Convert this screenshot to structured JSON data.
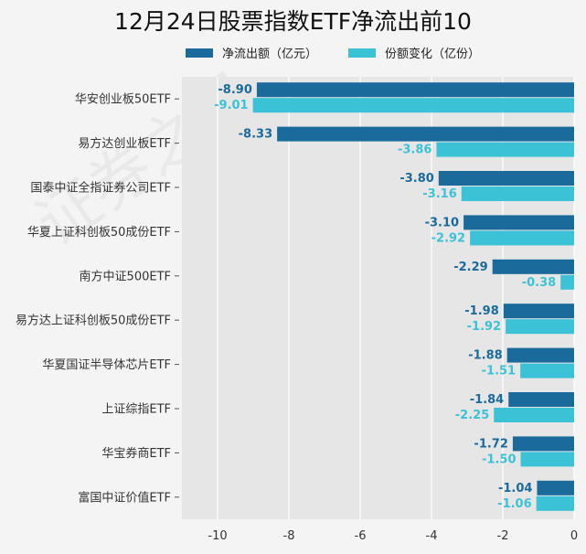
{
  "chart_data": {
    "type": "bar",
    "orientation": "horizontal",
    "title": "12月24日股票指数ETF净流出前10",
    "categories": [
      "华安创业板50ETF",
      "易方达创业板ETF",
      "国泰中证全指证券公司ETF",
      "华夏上证科创板50成份ETF",
      "南方中证500ETF",
      "易方达上证科创板50成份ETF",
      "华夏国证半导体芯片ETF",
      "上证综指ETF",
      "华宝券商ETF",
      "富国中证价值ETF"
    ],
    "series": [
      {
        "name": "净流出额（亿元）",
        "color": "#1a6a9c",
        "values": [
          -8.9,
          -8.33,
          -3.8,
          -3.1,
          -2.29,
          -1.98,
          -1.88,
          -1.84,
          -1.72,
          -1.04
        ],
        "labels": [
          "-8.90",
          "-8.33",
          "-3.80",
          "-3.10",
          "-2.29",
          "-1.98",
          "-1.88",
          "-1.84",
          "-1.72",
          "-1.04"
        ]
      },
      {
        "name": "份额变化（亿份）",
        "color": "#3bc2d6",
        "values": [
          -9.01,
          -3.86,
          -3.16,
          -2.92,
          -0.38,
          -1.92,
          -1.51,
          -2.25,
          -1.5,
          -1.06
        ],
        "labels": [
          "-9.01",
          "-3.86",
          "-3.16",
          "-2.92",
          "-0.38",
          "-1.92",
          "-1.51",
          "-2.25",
          "-1.50",
          "-1.06"
        ]
      }
    ],
    "xlim": [
      -11,
      0
    ],
    "xticks": [
      -10,
      -8,
      -6,
      -4,
      -2,
      0
    ],
    "xtick_labels": [
      "-10",
      "-8",
      "-6",
      "-4",
      "-2",
      "0"
    ],
    "grid": "vertical",
    "legend_position": "top"
  },
  "watermark": "证券之星"
}
